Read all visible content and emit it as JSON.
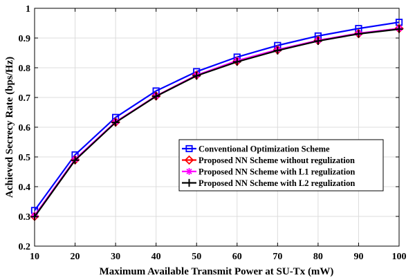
{
  "chart_data": {
    "type": "line",
    "title": "",
    "xlabel": "Maximum Available Transmit Power at SU-Tx (mW)",
    "ylabel": "Achieved Secrecy Rate (bps/Hz)",
    "xlim": [
      10,
      100
    ],
    "ylim": [
      0.2,
      1.0
    ],
    "grid": true,
    "legend_position": "lower-right",
    "x": [
      10,
      20,
      30,
      40,
      50,
      60,
      70,
      80,
      90,
      100
    ],
    "x_ticks": [
      "10",
      "20",
      "30",
      "40",
      "50",
      "60",
      "70",
      "80",
      "90",
      "100"
    ],
    "y_ticks": [
      "0.2",
      "0.3",
      "0.4",
      "0.5",
      "0.6",
      "0.7",
      "0.8",
      "0.9",
      "1"
    ],
    "series": [
      {
        "name": "Conventional Optimization Scheme",
        "color": "#0000ff",
        "marker": "square",
        "values": [
          0.32,
          0.507,
          0.633,
          0.722,
          0.787,
          0.836,
          0.875,
          0.907,
          0.932,
          0.953
        ]
      },
      {
        "name": "Proposed NN Scheme without regulization",
        "color": "#ff0000",
        "marker": "diamond",
        "values": [
          0.3,
          0.49,
          0.617,
          0.705,
          0.775,
          0.822,
          0.86,
          0.892,
          0.915,
          0.932
        ]
      },
      {
        "name": "Proposed NN Scheme with L1 regulization",
        "color": "#ff00ff",
        "marker": "star",
        "values": [
          0.303,
          0.492,
          0.618,
          0.705,
          0.775,
          0.824,
          0.861,
          0.892,
          0.916,
          0.932
        ]
      },
      {
        "name": "Proposed NN Scheme with L2 regulization",
        "color": "#000000",
        "marker": "plus",
        "values": [
          0.299,
          0.489,
          0.616,
          0.704,
          0.773,
          0.82,
          0.858,
          0.89,
          0.914,
          0.93
        ]
      }
    ]
  }
}
